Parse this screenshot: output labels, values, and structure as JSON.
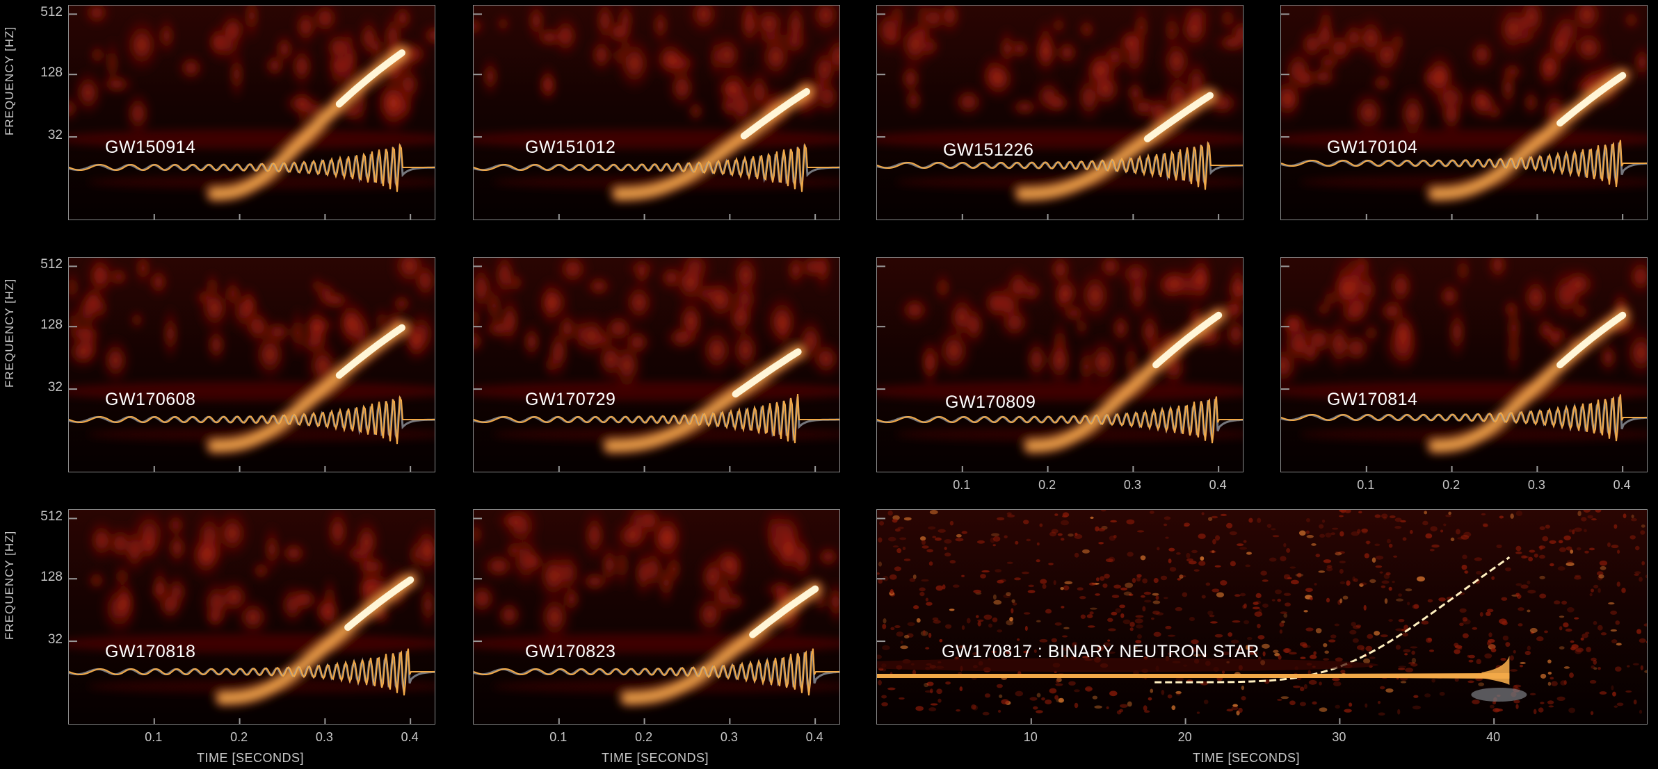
{
  "colors": {
    "background": "#000000",
    "frame": "#8a8a8a",
    "hot": "#fff6d0",
    "warm": "#f0a040",
    "dark_red": "#5a0a04",
    "waveform": "#f2a948",
    "whitened": "#9aa0a8"
  },
  "axis_text": {
    "ylabel": "FREQUENCY  [HZ]",
    "xlabel": "TIME  [SECONDS]",
    "ticks_hz": [
      "512",
      "128",
      "32"
    ],
    "ticks_sec": [
      "0.1",
      "0.2",
      "0.3",
      "0.4"
    ],
    "ticks_long": [
      "10",
      "20",
      "30",
      "40"
    ]
  },
  "chart_data": {
    "type": "heatmap",
    "title": "",
    "xlabel": "TIME  [SECONDS]",
    "ylabel": "FREQUENCY  [HZ]",
    "yscale": "log",
    "yticks": [
      32,
      128,
      512
    ],
    "xticks": [
      0.1,
      0.2,
      0.3,
      0.4
    ],
    "xlim": [
      0,
      0.43
    ],
    "panels": [
      {
        "name": "GW150914",
        "chirp_end_time": 0.39,
        "peak_frequency": 300
      },
      {
        "name": "GW151012",
        "chirp_end_time": 0.39,
        "peak_frequency": 150
      },
      {
        "name": "GW151226",
        "chirp_end_time": 0.39,
        "peak_frequency": 140
      },
      {
        "name": "GW170104",
        "chirp_end_time": 0.4,
        "peak_frequency": 200
      },
      {
        "name": "GW170608",
        "chirp_end_time": 0.39,
        "peak_frequency": 200
      },
      {
        "name": "GW170729",
        "chirp_end_time": 0.38,
        "peak_frequency": 130
      },
      {
        "name": "GW170809",
        "chirp_end_time": 0.4,
        "peak_frequency": 250
      },
      {
        "name": "GW170814",
        "chirp_end_time": 0.4,
        "peak_frequency": 250
      },
      {
        "name": "GW170818",
        "chirp_end_time": 0.4,
        "peak_frequency": 200
      },
      {
        "name": "GW170823",
        "chirp_end_time": 0.4,
        "peak_frequency": 170
      },
      {
        "name": "GW170817 : BINARY NEUTRON STAR",
        "xlim": [
          0,
          50
        ],
        "xticks": [
          10,
          20,
          30,
          40
        ],
        "xlabel": "TIME  [SECONDS]",
        "chirp_end_time": 41,
        "peak_frequency": 300
      }
    ]
  }
}
